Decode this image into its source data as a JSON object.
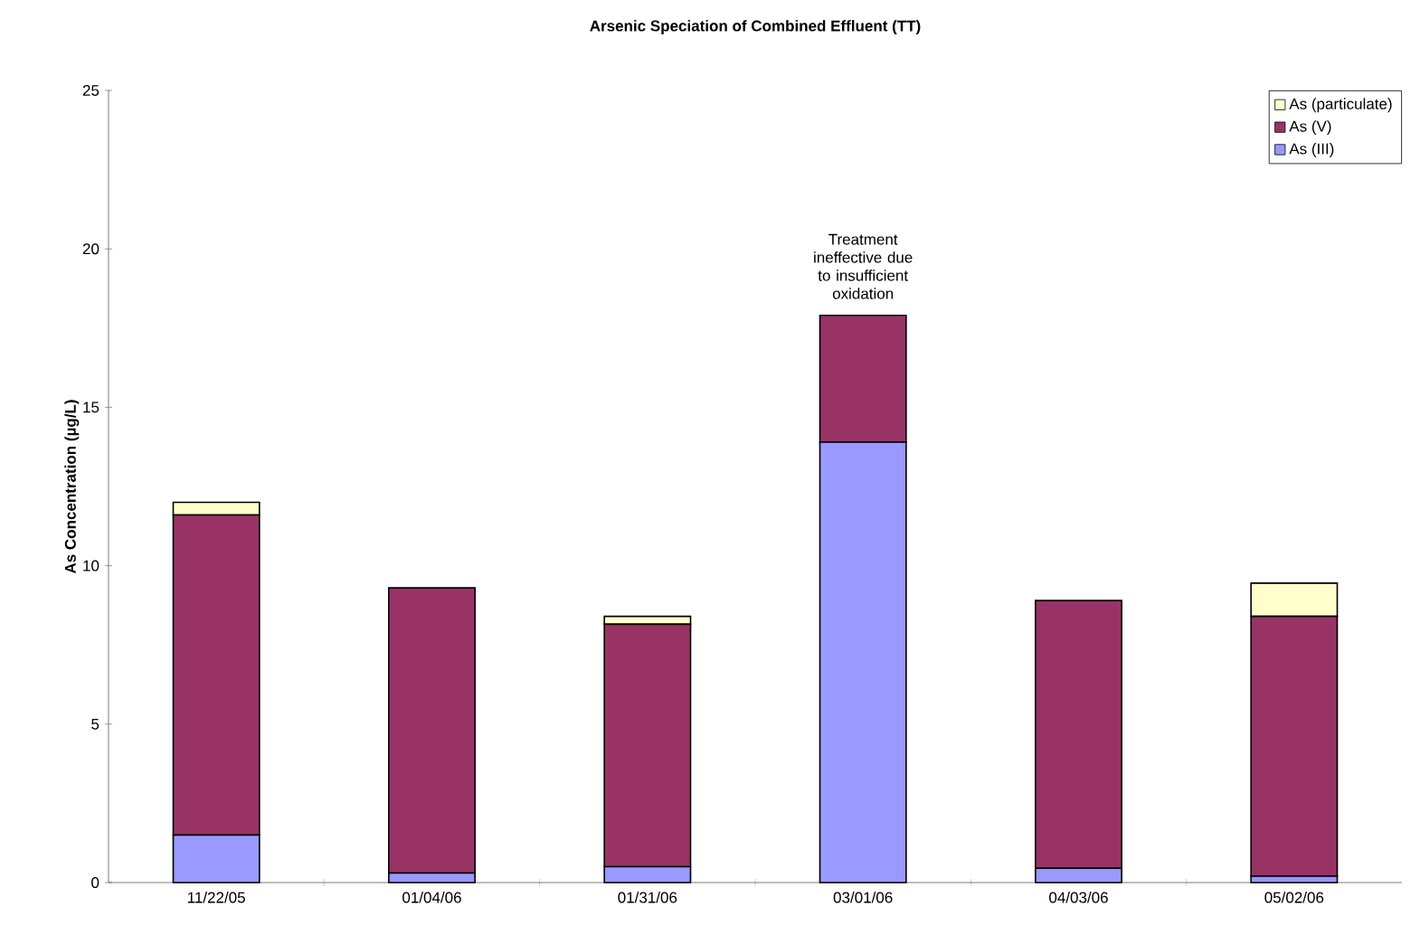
{
  "chart_data": {
    "type": "bar",
    "stacked": true,
    "title": "Arsenic Speciation of Combined Effluent (TT)",
    "ylabel": "As Concentration (µg/L)",
    "categories": [
      "11/22/05",
      "01/04/06",
      "01/31/06",
      "03/01/06",
      "04/03/06",
      "05/02/06"
    ],
    "series": [
      {
        "name": "As (III)",
        "color": "#9999ff",
        "values": [
          1.5,
          0.3,
          0.5,
          13.9,
          0.45,
          0.2
        ]
      },
      {
        "name": "As (V)",
        "color": "#993366",
        "values": [
          10.1,
          9.0,
          7.65,
          4.0,
          8.45,
          8.2
        ]
      },
      {
        "name": "As (particulate)",
        "color": "#ffffcc",
        "values": [
          0.4,
          null,
          0.25,
          null,
          null,
          1.05
        ]
      }
    ],
    "ylim": [
      0,
      25
    ],
    "yticks": [
      0,
      5,
      10,
      15,
      20,
      25
    ],
    "grid": false,
    "legend": "top right",
    "annotations": [
      {
        "text": "Treatment ineffective due to insufficient oxidation",
        "x": "03/01/06",
        "y": 17.9
      }
    ]
  }
}
